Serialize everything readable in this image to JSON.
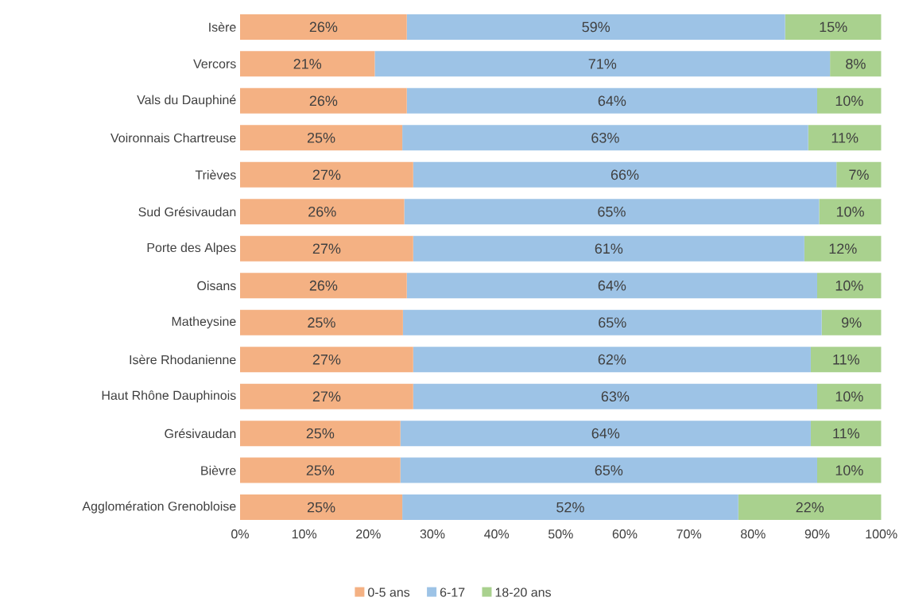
{
  "chart_data": {
    "type": "bar",
    "orientation": "horizontal",
    "stacked": true,
    "categories": [
      "Isère",
      "Vercors",
      "Vals du Dauphiné",
      "Voironnais Chartreuse",
      "Trièves",
      "Sud Grésivaudan",
      "Porte des Alpes",
      "Oisans",
      "Matheysine",
      "Isère Rhodanienne",
      "Haut Rhône Dauphinois",
      "Grésivaudan",
      "Bièvre",
      "Agglomération Grenobloise"
    ],
    "series": [
      {
        "name": "0-5 ans",
        "color": "#f4b183",
        "values": [
          26,
          21,
          26,
          25.3,
          27,
          25.6,
          27,
          26,
          25.4,
          27,
          27,
          25,
          25,
          25.3
        ],
        "value_labels": [
          "26%",
          "21%",
          "26%",
          "25%",
          "27%",
          "26%",
          "27%",
          "26%",
          "25%",
          "27%",
          "27%",
          "25%",
          "25%",
          "25%"
        ]
      },
      {
        "name": "6-17",
        "color": "#9dc3e6",
        "values": [
          59,
          71,
          64,
          63.3,
          66,
          64.7,
          61,
          64,
          65.3,
          62,
          63,
          64,
          65,
          52.4
        ],
        "value_labels": [
          "59%",
          "71%",
          "64%",
          "63%",
          "66%",
          "65%",
          "61%",
          "64%",
          "65%",
          "62%",
          "63%",
          "64%",
          "65%",
          "52%"
        ]
      },
      {
        "name": "18-20 ans",
        "color": "#a9d18e",
        "values": [
          15,
          8,
          10,
          11.4,
          7,
          9.7,
          12,
          10,
          9.3,
          11,
          10,
          11,
          10,
          22.3
        ],
        "value_labels": [
          "15%",
          "8%",
          "10%",
          "11%",
          "7%",
          "10%",
          "12%",
          "10%",
          "9%",
          "11%",
          "10%",
          "11%",
          "10%",
          "22%"
        ]
      }
    ],
    "xlim": [
      0,
      100
    ],
    "xticks": [
      {
        "value": 0,
        "label": "0%"
      },
      {
        "value": 10,
        "label": "10%"
      },
      {
        "value": 20,
        "label": "20%"
      },
      {
        "value": 30,
        "label": "30%"
      },
      {
        "value": 40,
        "label": "40%"
      },
      {
        "value": 50,
        "label": "50%"
      },
      {
        "value": 60,
        "label": "60%"
      },
      {
        "value": 70,
        "label": "70%"
      },
      {
        "value": 80,
        "label": "80%"
      },
      {
        "value": 90,
        "label": "90%"
      },
      {
        "value": 100,
        "label": "100%"
      }
    ],
    "legend": "bottom"
  }
}
